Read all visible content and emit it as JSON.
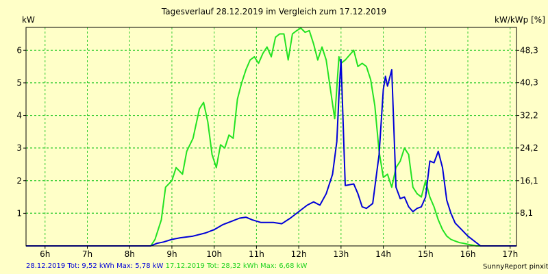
{
  "header": {
    "title": "Tagesverlauf 28.12.2019 im Vergleich zum 17.12.2019",
    "unit_left": "kW",
    "unit_right": "kW/kWp [%]"
  },
  "footer": {
    "blue_label": "28.12.2019 Tot: 9,52 kWh Max: 5,78 kW",
    "green_label": "17.12.2019 Tot: 28,32 kWh Max: 6,68 kW",
    "credit": "SunnyReport pinxit"
  },
  "colors": {
    "background": "#ffffc8",
    "plot_background": "#ffffc8",
    "grid": "#2ecb2e",
    "blue_series": "#0000d8",
    "green_series": "#22e222",
    "axis": "#000000"
  },
  "chart_data": {
    "type": "line",
    "title": "Tagesverlauf 28.12.2019 im Vergleich zum 17.12.2019",
    "ylabel": "kW",
    "y2label": "kW/kWp [%]",
    "xlim": [
      5.55,
      17.15
    ],
    "ylim": [
      0,
      6.7
    ],
    "grid": true,
    "x_ticks": [
      6,
      7,
      8,
      9,
      10,
      11,
      12,
      13,
      14,
      15,
      16,
      17
    ],
    "x_tick_labels": [
      "6h",
      "7h",
      "8h",
      "9h",
      "10h",
      "11h",
      "12h",
      "13h",
      "14h",
      "15h",
      "16h",
      "17h"
    ],
    "y_ticks": [
      1,
      2,
      3,
      4,
      5,
      6
    ],
    "y_tick_labels": [
      "1",
      "2",
      "3",
      "4",
      "5",
      "6"
    ],
    "y2_ticks": [
      8.1,
      16.1,
      24.2,
      32.2,
      40.3,
      48.3
    ],
    "y2_tick_labels": [
      "8,1",
      "16,1",
      "24,2",
      "32,2",
      "40,3",
      "48,3"
    ],
    "y2_scale_kw_per_percent": 0.1242,
    "series": [
      {
        "name": "28.12.2019",
        "color": "#0000d8",
        "x": [
          5.55,
          8.5,
          8.65,
          8.8,
          9.0,
          9.2,
          9.5,
          9.8,
          10.0,
          10.2,
          10.4,
          10.6,
          10.75,
          10.9,
          11.1,
          11.4,
          11.6,
          11.8,
          12.0,
          12.2,
          12.35,
          12.5,
          12.65,
          12.8,
          12.9,
          12.95,
          13.0,
          13.1,
          13.3,
          13.4,
          13.5,
          13.6,
          13.75,
          13.9,
          14.0,
          14.05,
          14.1,
          14.2,
          14.3,
          14.4,
          14.5,
          14.6,
          14.7,
          14.8,
          14.9,
          15.0,
          15.1,
          15.2,
          15.3,
          15.4,
          15.5,
          15.6,
          15.7,
          15.85,
          16.0,
          16.3,
          17.15
        ],
        "y": [
          0.0,
          0.0,
          0.08,
          0.12,
          0.2,
          0.25,
          0.3,
          0.4,
          0.5,
          0.65,
          0.75,
          0.85,
          0.88,
          0.8,
          0.72,
          0.72,
          0.68,
          0.85,
          1.05,
          1.25,
          1.35,
          1.25,
          1.6,
          2.2,
          3.2,
          4.6,
          5.72,
          1.85,
          1.9,
          1.6,
          1.2,
          1.15,
          1.3,
          2.8,
          4.8,
          5.2,
          4.9,
          5.4,
          1.8,
          1.45,
          1.5,
          1.2,
          1.05,
          1.15,
          1.2,
          1.5,
          2.6,
          2.55,
          2.9,
          2.4,
          1.4,
          1.0,
          0.7,
          0.5,
          0.3,
          0.0,
          0.0
        ]
      },
      {
        "name": "17.12.2019",
        "color": "#22e222",
        "x": [
          5.55,
          8.5,
          8.6,
          8.75,
          8.85,
          9.0,
          9.1,
          9.25,
          9.35,
          9.5,
          9.65,
          9.75,
          9.85,
          9.95,
          10.05,
          10.15,
          10.25,
          10.35,
          10.45,
          10.55,
          10.65,
          10.75,
          10.85,
          10.95,
          11.05,
          11.15,
          11.25,
          11.35,
          11.45,
          11.55,
          11.65,
          11.75,
          11.85,
          11.95,
          12.05,
          12.15,
          12.25,
          12.35,
          12.45,
          12.55,
          12.65,
          12.75,
          12.85,
          12.95,
          13.0,
          13.1,
          13.2,
          13.3,
          13.4,
          13.5,
          13.6,
          13.7,
          13.8,
          13.9,
          14.0,
          14.1,
          14.2,
          14.3,
          14.4,
          14.5,
          14.6,
          14.7,
          14.8,
          14.9,
          15.0,
          15.1,
          15.2,
          15.3,
          15.4,
          15.5,
          15.6,
          15.7,
          15.8,
          15.9,
          16.0,
          16.2,
          16.5,
          17.15
        ],
        "y": [
          0.0,
          0.0,
          0.2,
          0.8,
          1.8,
          2.0,
          2.4,
          2.2,
          2.9,
          3.3,
          4.2,
          4.4,
          3.8,
          2.8,
          2.4,
          3.1,
          3.0,
          3.4,
          3.3,
          4.5,
          5.0,
          5.4,
          5.7,
          5.8,
          5.6,
          5.9,
          6.1,
          5.8,
          6.4,
          6.5,
          6.5,
          5.7,
          6.5,
          6.6,
          6.68,
          6.55,
          6.6,
          6.2,
          5.7,
          6.1,
          5.7,
          4.8,
          3.9,
          5.8,
          5.6,
          5.7,
          5.85,
          6.0,
          5.5,
          5.6,
          5.5,
          5.1,
          4.3,
          2.9,
          2.1,
          2.2,
          1.8,
          2.4,
          2.6,
          3.0,
          2.8,
          1.8,
          1.6,
          1.5,
          2.0,
          1.5,
          1.2,
          0.8,
          0.5,
          0.3,
          0.2,
          0.15,
          0.1,
          0.08,
          0.05,
          0.0,
          0.0,
          0.0
        ]
      }
    ]
  }
}
